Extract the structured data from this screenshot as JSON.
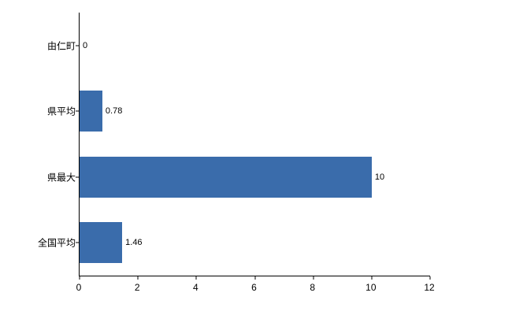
{
  "chart_data": {
    "type": "bar",
    "orientation": "horizontal",
    "title": "",
    "xlabel": "",
    "ylabel": "",
    "categories": [
      "由仁町",
      "県平均",
      "県最大",
      "全国平均"
    ],
    "values": [
      0,
      0.78,
      10,
      1.46
    ],
    "value_labels": [
      "0",
      "0.78",
      "10",
      "1.46"
    ],
    "xlim": [
      0,
      12
    ],
    "xticks": [
      "0",
      "2",
      "4",
      "6",
      "8",
      "10",
      "12"
    ],
    "xtick_values": [
      0,
      2,
      4,
      6,
      8,
      10,
      12
    ],
    "grid": false,
    "legend": "none",
    "bar_color": "#3a6cab",
    "axis_color": "#000000",
    "label_color": "#000000",
    "background_color": "#ffffff"
  }
}
